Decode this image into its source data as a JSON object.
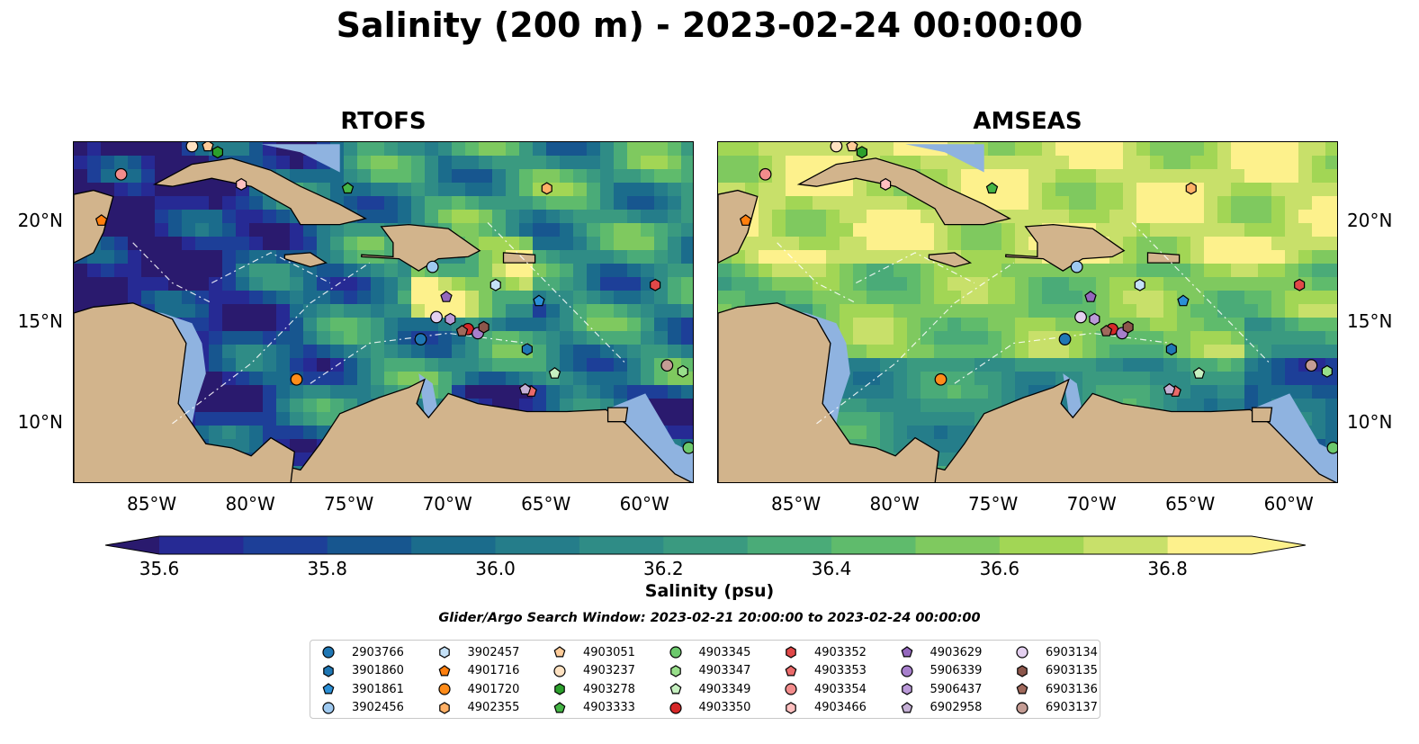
{
  "title": "Salinity (200 m) - 2023-02-24 00:00:00",
  "panels": [
    {
      "title": "RTOFS"
    },
    {
      "title": "AMSEAS"
    }
  ],
  "x_ticks": [
    "85°W",
    "80°W",
    "75°W",
    "70°W",
    "65°W",
    "60°W"
  ],
  "y_ticks": [
    "20°N",
    "15°N",
    "10°N"
  ],
  "colors": {
    "land": "#d2b48c",
    "shallow_water": "#8fb3e0",
    "colormap": [
      "#2a1a6e",
      "#262a94",
      "#1d3f98",
      "#17568f",
      "#1b6c8c",
      "#257d8a",
      "#2f8c86",
      "#3a9a80",
      "#4aab78",
      "#5fbb6c",
      "#7fc95f",
      "#a2d655",
      "#c8e06a",
      "#fdf18c"
    ]
  },
  "colorbar": {
    "min": 35.6,
    "max": 36.9,
    "step": 0.1,
    "ticks": [
      "35.6",
      "35.8",
      "36.0",
      "36.2",
      "36.4",
      "36.6",
      "36.8"
    ],
    "label": "Salinity (psu)"
  },
  "search_window": "Glider/Argo Search Window: 2023-02-21 20:00:00 to 2023-02-24 00:00:00",
  "legend": [
    {
      "id": "2903766",
      "marker": "circle",
      "color": "#1f77b4"
    },
    {
      "id": "3901860",
      "marker": "hexagon",
      "color": "#1f77b4"
    },
    {
      "id": "3901861",
      "marker": "pentagon",
      "color": "#2b8fd6"
    },
    {
      "id": "3902456",
      "marker": "circle",
      "color": "#9ec9f0"
    },
    {
      "id": "3902457",
      "marker": "hexagon",
      "color": "#c4e1f8"
    },
    {
      "id": "4901716",
      "marker": "pentagon",
      "color": "#ff7f0e"
    },
    {
      "id": "4901720",
      "marker": "circle",
      "color": "#ff8c1a"
    },
    {
      "id": "4902355",
      "marker": "hexagon",
      "color": "#ffb066"
    },
    {
      "id": "4903051",
      "marker": "pentagon",
      "color": "#ffcc99"
    },
    {
      "id": "4903237",
      "marker": "circle",
      "color": "#ffe2c2"
    },
    {
      "id": "4903278",
      "marker": "hexagon",
      "color": "#2ca02c"
    },
    {
      "id": "4903333",
      "marker": "pentagon",
      "color": "#45b545"
    },
    {
      "id": "4903345",
      "marker": "circle",
      "color": "#6cc96c"
    },
    {
      "id": "4903347",
      "marker": "hexagon",
      "color": "#98df8a"
    },
    {
      "id": "4903349",
      "marker": "pentagon",
      "color": "#c6f0c0"
    },
    {
      "id": "4903350",
      "marker": "circle",
      "color": "#d62728"
    },
    {
      "id": "4903352",
      "marker": "hexagon",
      "color": "#e04848"
    },
    {
      "id": "4903353",
      "marker": "pentagon",
      "color": "#ea6a6a"
    },
    {
      "id": "4903354",
      "marker": "circle",
      "color": "#f28c8c"
    },
    {
      "id": "4903466",
      "marker": "hexagon",
      "color": "#ffc0c0"
    },
    {
      "id": "4903629",
      "marker": "pentagon",
      "color": "#9467bd"
    },
    {
      "id": "5906339",
      "marker": "circle",
      "color": "#a77fcc"
    },
    {
      "id": "5906437",
      "marker": "hexagon",
      "color": "#bb9ad9"
    },
    {
      "id": "6902958",
      "marker": "pentagon",
      "color": "#c5b0d5"
    },
    {
      "id": "6903134",
      "marker": "circle",
      "color": "#e4d0f0"
    },
    {
      "id": "6903135",
      "marker": "hexagon",
      "color": "#8c564b"
    },
    {
      "id": "6903136",
      "marker": "pentagon",
      "color": "#a0695c"
    },
    {
      "id": "6903137",
      "marker": "circle",
      "color": "#c49c94"
    }
  ],
  "chart_data": {
    "type": "heatmap",
    "title": "Salinity (200 m) - 2023-02-24 00:00:00",
    "xlabel": "",
    "ylabel": "",
    "x_range": [
      -89,
      -57.5
    ],
    "y_range": [
      7,
      24
    ],
    "grid": false,
    "subplots": [
      "RTOFS",
      "AMSEAS"
    ],
    "colorbar_range": [
      35.6,
      36.9
    ],
    "colorbar_label": "Salinity (psu)",
    "observations": [
      {
        "id": "2903766",
        "lon": -71.4,
        "lat": 14.2
      },
      {
        "id": "3901860",
        "lon": -66.0,
        "lat": 13.7
      },
      {
        "id": "3901861",
        "lon": -65.4,
        "lat": 16.1
      },
      {
        "id": "3902456",
        "lon": -70.8,
        "lat": 17.8
      },
      {
        "id": "3902457",
        "lon": -67.6,
        "lat": 16.9
      },
      {
        "id": "4901716",
        "lon": -87.6,
        "lat": 20.1
      },
      {
        "id": "4901720",
        "lon": -77.7,
        "lat": 12.2
      },
      {
        "id": "4902355",
        "lon": -65.0,
        "lat": 21.7
      },
      {
        "id": "4903051",
        "lon": -82.2,
        "lat": 23.8
      },
      {
        "id": "4903237",
        "lon": -83.0,
        "lat": 23.8
      },
      {
        "id": "4903278",
        "lon": -81.7,
        "lat": 23.5
      },
      {
        "id": "4903333",
        "lon": -75.1,
        "lat": 21.7
      },
      {
        "id": "4903345",
        "lon": -57.8,
        "lat": 8.8
      },
      {
        "id": "4903347",
        "lon": -58.1,
        "lat": 12.6
      },
      {
        "id": "4903349",
        "lon": -64.6,
        "lat": 12.5
      },
      {
        "id": "4903350",
        "lon": -69.0,
        "lat": 14.7
      },
      {
        "id": "4903352",
        "lon": -59.5,
        "lat": 16.9
      },
      {
        "id": "4903353",
        "lon": -65.8,
        "lat": 11.6
      },
      {
        "id": "4903354",
        "lon": -86.6,
        "lat": 22.4
      },
      {
        "id": "4903466",
        "lon": -80.5,
        "lat": 21.9
      },
      {
        "id": "4903629",
        "lon": -70.1,
        "lat": 16.3
      },
      {
        "id": "5906339",
        "lon": -68.5,
        "lat": 14.5
      },
      {
        "id": "5906437",
        "lon": -69.9,
        "lat": 15.2
      },
      {
        "id": "6902958",
        "lon": -66.1,
        "lat": 11.7
      },
      {
        "id": "6903134",
        "lon": -70.6,
        "lat": 15.3
      },
      {
        "id": "6903135",
        "lon": -68.2,
        "lat": 14.8
      },
      {
        "id": "6903136",
        "lon": -69.3,
        "lat": 14.6
      },
      {
        "id": "6903137",
        "lon": -58.9,
        "lat": 12.9
      }
    ]
  }
}
